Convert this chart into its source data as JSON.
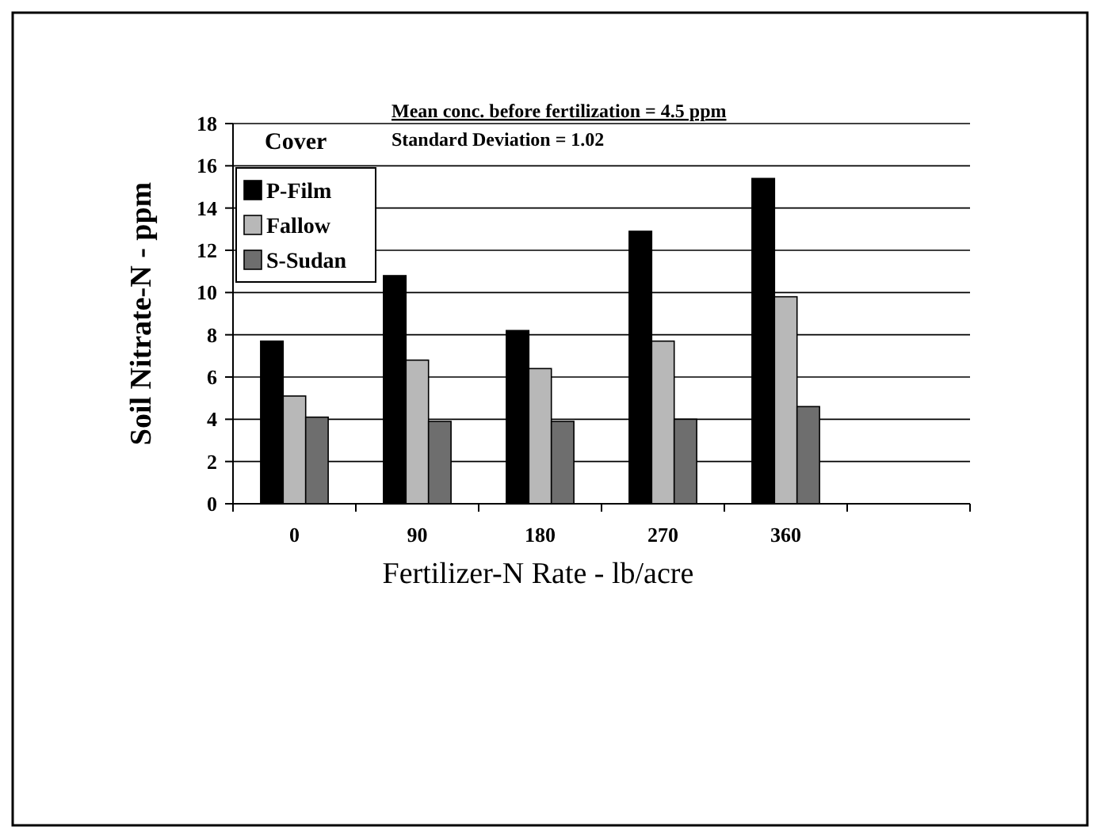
{
  "chart_data": {
    "type": "bar",
    "xlabel": "Fertilizer-N Rate - lb/acre",
    "ylabel": "Soil Nitrate-N - ppm",
    "legend_title": "Cover",
    "categories": [
      "0",
      "90",
      "180",
      "270",
      "360",
      null
    ],
    "series": [
      {
        "name": "P-Film",
        "color": "#000000",
        "values": [
          7.7,
          10.8,
          8.2,
          12.9,
          15.4,
          null
        ]
      },
      {
        "name": "Fallow",
        "color": "#b8b8b8",
        "values": [
          5.1,
          6.8,
          6.4,
          7.7,
          9.8,
          null
        ]
      },
      {
        "name": "S-Sudan",
        "color": "#6e6e6e",
        "values": [
          4.1,
          3.9,
          3.9,
          4.0,
          4.6,
          null
        ]
      }
    ],
    "annotations": [
      "Mean conc. before fertilization = 4.5 ppm",
      "Standard Deviation = 1.02"
    ],
    "ylim": [
      0,
      18
    ],
    "yticks": [
      0,
      2,
      4,
      6,
      8,
      10,
      12,
      14,
      16,
      18
    ],
    "grid": "y",
    "legend": "top left"
  }
}
